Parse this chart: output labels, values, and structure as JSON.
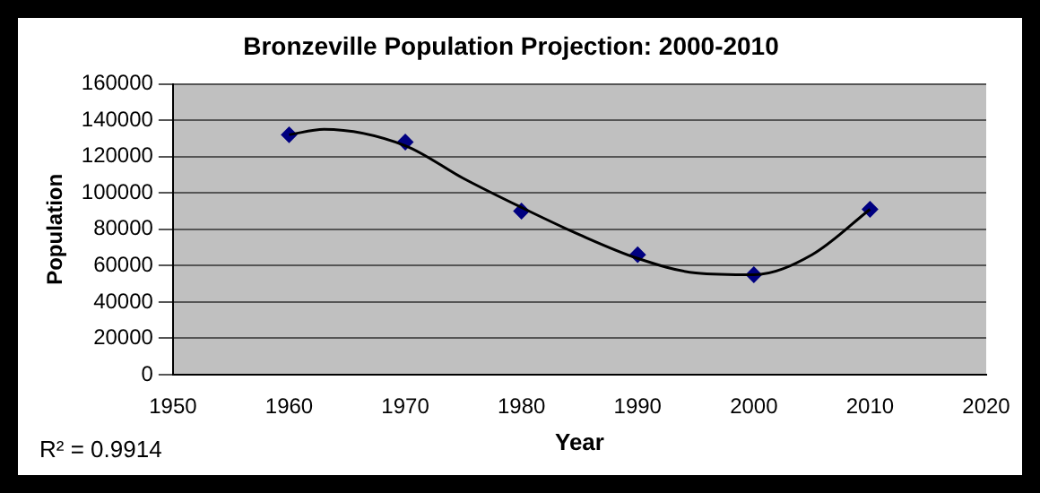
{
  "chart_data": {
    "type": "scatter",
    "title": "Bronzeville Population Projection: 2000-2010",
    "xlabel": "Year",
    "ylabel": "Population",
    "x": [
      1960,
      1970,
      1980,
      1990,
      2000,
      2010
    ],
    "series": [
      {
        "color": "#000080",
        "marker": "diamond",
        "values": [
          132000,
          128000,
          90000,
          66000,
          55000,
          91000
        ]
      },
      {
        "type": "line",
        "color": "#000000",
        "marker": "none",
        "x": [
          1960,
          1963,
          1970,
          1975,
          1980,
          1985,
          1990,
          1995,
          2000,
          2005,
          2010
        ],
        "values": [
          132000,
          135000,
          126000,
          108000,
          92000,
          77000,
          64000,
          56000,
          55000,
          66000,
          91000
        ]
      }
    ],
    "xlim": [
      1950,
      2020
    ],
    "xticks": [
      1950,
      1960,
      1970,
      1980,
      1990,
      2000,
      2010,
      2020
    ],
    "ylim": [
      0,
      160000
    ],
    "yticks": [
      0,
      20000,
      40000,
      60000,
      80000,
      100000,
      120000,
      140000,
      160000
    ],
    "grid": "y",
    "legend": false,
    "annotations": [
      "R² = 0.9914"
    ]
  }
}
